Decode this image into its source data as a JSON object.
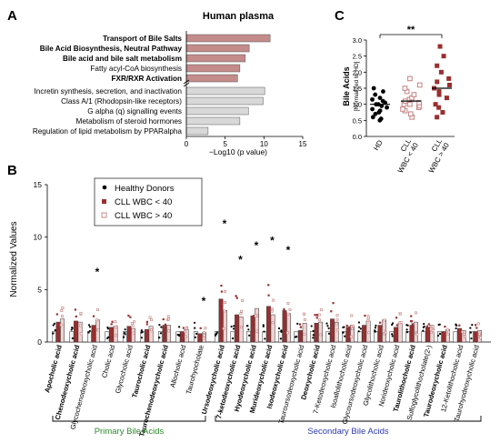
{
  "panels": {
    "a": "A",
    "b": "B",
    "c": "C"
  },
  "colors": {
    "bile_bar": "#c48b8b",
    "other_bar": "#d8d8d8",
    "cll_low": "#9a2f2f",
    "cll_high": "#c88a8a",
    "dark_red": "#8b2e2e"
  },
  "chart_data": [
    {
      "id": "A",
      "type": "bar",
      "orientation": "horizontal",
      "title": "Human plasma",
      "xlabel": "−Log10 (p value)",
      "xlim": [
        0,
        15
      ],
      "xticks": [
        "0",
        "5",
        "10",
        "15"
      ],
      "grid": false,
      "categories": [
        "Transport of Bile Salts",
        "Bile Acid Biosynthesis, Neutral Pathway",
        "Bile acid and bile salt metabolism",
        "Fatty acyl-CoA biosynthesis",
        "FXR/RXR Activation",
        "Incretin synthesis, secretion, and inactivation",
        "Class A/1 (Rhodopsin-like receptors)",
        "G alpha (q) signalling events",
        "Metabolism of steroid hormones",
        "Regulation of lipid metabolism by PPARalpha"
      ],
      "values": [
        10.8,
        8.1,
        7.6,
        6.9,
        6.6,
        10.1,
        9.9,
        8.0,
        6.9,
        2.8
      ],
      "bold": [
        true,
        true,
        true,
        false,
        true,
        false,
        false,
        false,
        false,
        false
      ]
    },
    {
      "id": "C",
      "type": "scatter",
      "ylabel": "Bile Acids",
      "ylabel_sub": "[Normalized to HD]",
      "ylim": [
        0,
        3
      ],
      "yticks": [
        "0.0",
        "0.5",
        "1.0",
        "1.5",
        "2.0",
        "2.5",
        "3.0"
      ],
      "categories": [
        "HD",
        "CLL\nWBC < 40",
        "CLL\nWBC > 40"
      ],
      "annotation": "**",
      "series": [
        {
          "values": [
            0.5,
            0.55,
            0.6,
            0.7,
            0.75,
            0.8,
            0.85,
            0.9,
            0.95,
            1.0,
            1.0,
            1.05,
            1.1,
            1.15,
            1.2,
            1.3,
            1.4,
            1.5
          ],
          "mean": 1.0
        },
        {
          "values": [
            0.6,
            0.7,
            0.8,
            0.85,
            0.9,
            0.95,
            1.0,
            1.0,
            1.05,
            1.1,
            1.15,
            1.2,
            1.3,
            1.4,
            1.5,
            1.6,
            1.8
          ],
          "mean": 1.1
        },
        {
          "values": [
            0.6,
            0.75,
            0.9,
            1.0,
            1.2,
            1.3,
            1.4,
            1.5,
            1.6,
            1.7,
            1.8,
            2.0,
            2.2,
            2.5,
            2.8
          ],
          "mean": 1.5
        }
      ]
    },
    {
      "id": "B",
      "type": "bar",
      "ylabel": "Normalized Values",
      "ylim": [
        0,
        15
      ],
      "yticks": [
        "0",
        "5",
        "10",
        "15"
      ],
      "legend": [
        "Healthy Donors",
        "CLL WBC < 40",
        "CLL WBC > 40"
      ],
      "legend_position": "top-left",
      "categories": [
        "Apocholic acid",
        "Chenodeoxycholic acid",
        "Glycochenodeoxycholic acid",
        "Cholic acid",
        "Glycocholic acid",
        "Taurocholic acid",
        "Taurochenodeoxycholic acid",
        "Allocholic acid",
        "Taurohyocholate",
        "Ursodeoxycholic acid",
        "7-ketodeoxycholic acid",
        "Hyodeoxycholic acid",
        "Murideoxycholic acid",
        "Isodeoxycholic acid",
        "Tauroursodeoxycholic acid",
        "Deoxycholic acid",
        "7-Ketodeoxycholic acid",
        "Isoallolithocholic acid",
        "Glycoursodeoxycholic acid",
        "Glycolithocholic acid",
        "Norideoxycholic acid",
        "Taurolithocholic acid",
        "Sulfoglycolithocholate(2-)",
        "Taurodeoxycholic acid",
        "12-Ketolithocholic acid",
        "Taurohyodeoxycholic acid"
      ],
      "bold": [
        true,
        true,
        false,
        false,
        false,
        true,
        true,
        false,
        false,
        true,
        true,
        true,
        true,
        true,
        false,
        true,
        false,
        false,
        false,
        false,
        false,
        true,
        false,
        true,
        false,
        false
      ],
      "series": [
        {
          "name": "Healthy Donors",
          "values": [
            1.0,
            1.0,
            1.0,
            1.0,
            1.0,
            1.0,
            1.0,
            1.0,
            1.0,
            1.0,
            1.0,
            1.0,
            1.0,
            1.0,
            1.0,
            1.0,
            1.0,
            1.0,
            1.0,
            1.0,
            1.0,
            1.0,
            1.0,
            1.0,
            1.0,
            1.0
          ]
        },
        {
          "name": "CLL WBC < 40",
          "values": [
            1.9,
            2.0,
            1.6,
            1.4,
            1.5,
            1.2,
            1.6,
            1.0,
            0.8,
            4.1,
            2.6,
            2.5,
            3.4,
            3.0,
            1.1,
            1.8,
            2.2,
            1.4,
            1.6,
            1.6,
            1.4,
            1.6,
            1.4,
            1.0,
            1.3,
            1.0
          ]
        },
        {
          "name": "CLL WBC > 40",
          "values": [
            2.2,
            1.9,
            2.1,
            1.5,
            1.3,
            1.5,
            1.6,
            1.2,
            0.9,
            3.0,
            2.4,
            3.2,
            2.6,
            2.7,
            1.8,
            1.9,
            1.9,
            1.6,
            2.0,
            2.1,
            1.8,
            1.9,
            1.6,
            1.2,
            1.1,
            1.1
          ]
        }
      ],
      "significant": [
        false,
        false,
        true,
        false,
        false,
        false,
        false,
        false,
        true,
        true,
        true,
        true,
        true,
        true,
        false,
        false,
        false,
        false,
        false,
        false,
        false,
        false,
        false,
        false,
        false,
        false
      ],
      "annotation": "*",
      "groups": [
        {
          "label": "Primary Bile Acids",
          "from": 0,
          "to": 8,
          "color": "#2d8a2d"
        },
        {
          "label": "Secondary Bile Acids",
          "from": 9,
          "to": 25,
          "color": "#2d3ab0"
        }
      ]
    }
  ]
}
